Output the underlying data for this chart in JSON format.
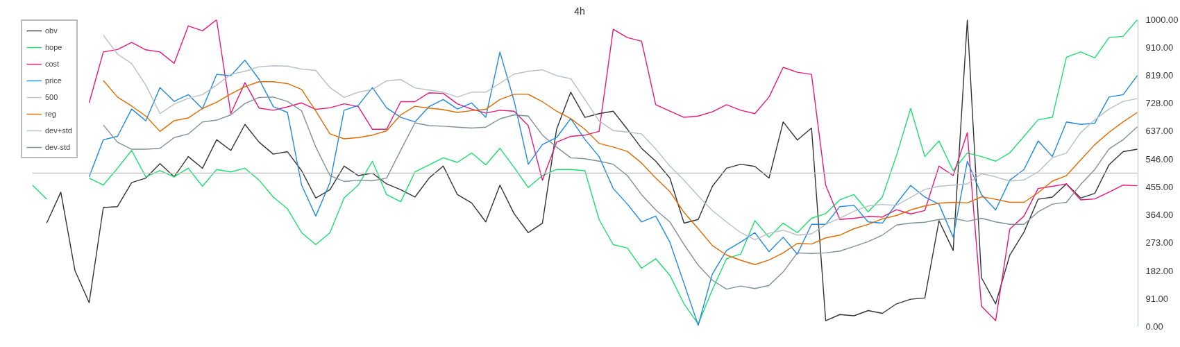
{
  "chart_data": {
    "type": "line",
    "title": "4h",
    "categories": [
      null,
      null,
      null,
      null,
      null,
      null,
      null,
      null,
      null,
      null,
      null,
      null,
      null,
      null,
      null,
      null,
      null,
      null,
      null,
      null,
      null,
      null,
      null,
      null,
      null,
      null,
      null,
      null,
      null,
      null,
      null,
      null,
      null,
      null,
      null,
      null,
      null,
      null,
      null,
      null,
      null,
      null,
      null,
      null,
      null,
      null,
      null,
      null,
      null,
      null,
      null,
      null,
      null,
      null,
      null,
      null,
      null,
      null,
      null,
      null,
      null,
      null,
      null,
      null,
      null,
      null,
      null,
      null,
      null,
      null,
      null,
      null,
      null,
      null,
      null,
      null,
      null,
      null,
      null
    ],
    "series": [
      {
        "name": "obv",
        "color": "#333333",
        "values": [
          null,
          337,
          438,
          182,
          78,
          388,
          391,
          469,
          484,
          531,
          488,
          554,
          516,
          609,
          574,
          659,
          601,
          562,
          570,
          508,
          419,
          446,
          523,
          492,
          500,
          465,
          446,
          422,
          484,
          523,
          430,
          403,
          341,
          461,
          368,
          306,
          337,
          643,
          764,
          682,
          694,
          702,
          643,
          581,
          539,
          484,
          337,
          349,
          457,
          516,
          529,
          522,
          484,
          667,
          608,
          647,
          19,
          39,
          35,
          52,
          43,
          74,
          89,
          93,
          345,
          248,
          1000,
          159,
          74,
          233,
          308,
          415,
          422,
          465,
          419,
          434,
          527,
          570,
          578
        ]
      },
      {
        "name": "hope",
        "color": "#19e06b",
        "values": [
          461,
          415,
          null,
          null,
          484,
          461,
          516,
          574,
          488,
          508,
          488,
          516,
          457,
          512,
          504,
          516,
          477,
          422,
          384,
          306,
          267,
          306,
          419,
          461,
          539,
          430,
          407,
          504,
          527,
          550,
          535,
          566,
          527,
          581,
          519,
          453,
          492,
          512,
          512,
          508,
          349,
          267,
          256,
          190,
          221,
          167,
          74,
          8,
          120,
          221,
          236,
          345,
          291,
          337,
          306,
          353,
          368,
          413,
          430,
          374,
          422,
          558,
          711,
          554,
          605,
          508,
          566,
          554,
          539,
          566,
          620,
          674,
          682,
          878,
          895,
          876,
          942,
          946,
          1000
        ]
      },
      {
        "name": "cost",
        "color": "#e8177a",
        "values": [
          null,
          null,
          null,
          null,
          729,
          895,
          903,
          926,
          902,
          895,
          858,
          980,
          964,
          1000,
          694,
          795,
          712,
          705,
          716,
          729,
          708,
          713,
          726,
          717,
          643,
          643,
          733,
          733,
          762,
          760,
          726,
          709,
          696,
          705,
          702,
          655,
          477,
          601,
          620,
          624,
          636,
          969,
          942,
          930,
          723,
          702,
          682,
          686,
          700,
          723,
          705,
          694,
          748,
          845,
          829,
          822,
          461,
          349,
          353,
          359,
          357,
          381,
          367,
          378,
          523,
          492,
          632,
          66,
          19,
          318,
          360,
          450,
          457,
          465,
          413,
          416,
          438,
          461,
          459
        ]
      },
      {
        "name": "price",
        "color": "#1e88e5",
        "values": [
          null,
          null,
          null,
          null,
          488,
          609,
          620,
          709,
          671,
          779,
          734,
          756,
          710,
          822,
          818,
          868,
          806,
          717,
          698,
          461,
          360,
          469,
          705,
          721,
          779,
          713,
          682,
          667,
          717,
          740,
          709,
          729,
          682,
          895,
          736,
          529,
          593,
          616,
          678,
          610,
          554,
          450,
          399,
          341,
          360,
          275,
          140,
          4,
          171,
          248,
          275,
          306,
          244,
          291,
          236,
          333,
          333,
          391,
          395,
          341,
          337,
          401,
          460,
          422,
          399,
          291,
          539,
          430,
          380,
          477,
          512,
          605,
          554,
          667,
          659,
          663,
          748,
          756,
          818
        ]
      },
      {
        "name": "500",
        "color": "#c4c4c4",
        "values": [
          500,
          500,
          500,
          500,
          500,
          500,
          500,
          500,
          500,
          500,
          500,
          500,
          500,
          500,
          500,
          500,
          500,
          500,
          500,
          500,
          500,
          500,
          500,
          500,
          500,
          500,
          500,
          500,
          500,
          500,
          500,
          500,
          500,
          500,
          500,
          500,
          500,
          500,
          500,
          500,
          500,
          500,
          500,
          500,
          500,
          500,
          500,
          500,
          500,
          500,
          500,
          500,
          500,
          500,
          500,
          500,
          500,
          500,
          500,
          500,
          500,
          500,
          500,
          500,
          500,
          500,
          500,
          500,
          500,
          500,
          500,
          500,
          500,
          500,
          500,
          500,
          500,
          500,
          500
        ]
      },
      {
        "name": "reg",
        "color": "#e06a00",
        "values": [
          null,
          null,
          null,
          null,
          null,
          802,
          748,
          719,
          686,
          636,
          671,
          680,
          711,
          731,
          758,
          782,
          798,
          798,
          792,
          773,
          703,
          628,
          612,
          616,
          624,
          638,
          690,
          718,
          712,
          707,
          698,
          704,
          708,
          740,
          757,
          757,
          733,
          702,
          678,
          643,
          597,
          585,
          571,
          533,
          484,
          440,
          372,
          319,
          264,
          233,
          216,
          202,
          217,
          240,
          271,
          269,
          289,
          298,
          319,
          333,
          351,
          362,
          380,
          393,
          402,
          405,
          403,
          423,
          415,
          405,
          405,
          436,
          474,
          492,
          543,
          593,
          633,
          667,
          698
        ]
      },
      {
        "name": "dev+std",
        "color": "#b7bfc5",
        "values": [
          null,
          null,
          null,
          null,
          null,
          950,
          888,
          857,
          787,
          694,
          725,
          744,
          756,
          787,
          822,
          832,
          847,
          850,
          849,
          839,
          835,
          779,
          747,
          764,
          773,
          801,
          805,
          778,
          771,
          764,
          748,
          764,
          764,
          793,
          823,
          832,
          837,
          818,
          808,
          740,
          670,
          639,
          634,
          628,
          579,
          523,
          477,
          426,
          378,
          341,
          306,
          283,
          304,
          314,
          298,
          302,
          333,
          353,
          376,
          393,
          398,
          395,
          421,
          447,
          457,
          461,
          465,
          498,
          488,
          474,
          478,
          504,
          550,
          566,
          632,
          674,
          709,
          734,
          743
        ]
      },
      {
        "name": "dev-std",
        "color": "#7f8f99",
        "values": [
          null,
          null,
          null,
          null,
          null,
          657,
          601,
          578,
          578,
          581,
          616,
          628,
          667,
          673,
          690,
          727,
          747,
          748,
          734,
          703,
          585,
          492,
          473,
          477,
          475,
          484,
          575,
          664,
          655,
          653,
          650,
          647,
          650,
          677,
          690,
          686,
          624,
          585,
          550,
          547,
          539,
          529,
          492,
          430,
          380,
          341,
          267,
          200,
          151,
          122,
          132,
          124,
          134,
          178,
          240,
          238,
          240,
          246,
          261,
          277,
          298,
          331,
          337,
          340,
          349,
          353,
          343,
          353,
          341,
          333,
          333,
          374,
          399,
          405,
          463,
          512,
          579,
          609,
          651
        ]
      }
    ],
    "ylim": [
      0,
      1000
    ],
    "yticks": [
      {
        "value": 0,
        "label": "0.00"
      },
      {
        "value": 91,
        "label": "91.00"
      },
      {
        "value": 182,
        "label": "182.00"
      },
      {
        "value": 273,
        "label": "273.00"
      },
      {
        "value": 364,
        "label": "364.00"
      },
      {
        "value": 455,
        "label": "455.00"
      },
      {
        "value": 546,
        "label": "546.00"
      },
      {
        "value": 637,
        "label": "637.00"
      },
      {
        "value": 728,
        "label": "728.00"
      },
      {
        "value": 819,
        "label": "819.00"
      },
      {
        "value": 910,
        "label": "910.00"
      },
      {
        "value": 1000,
        "label": "1000.00"
      }
    ],
    "tick_labels": "y",
    "grid": false,
    "legend": "top left"
  }
}
